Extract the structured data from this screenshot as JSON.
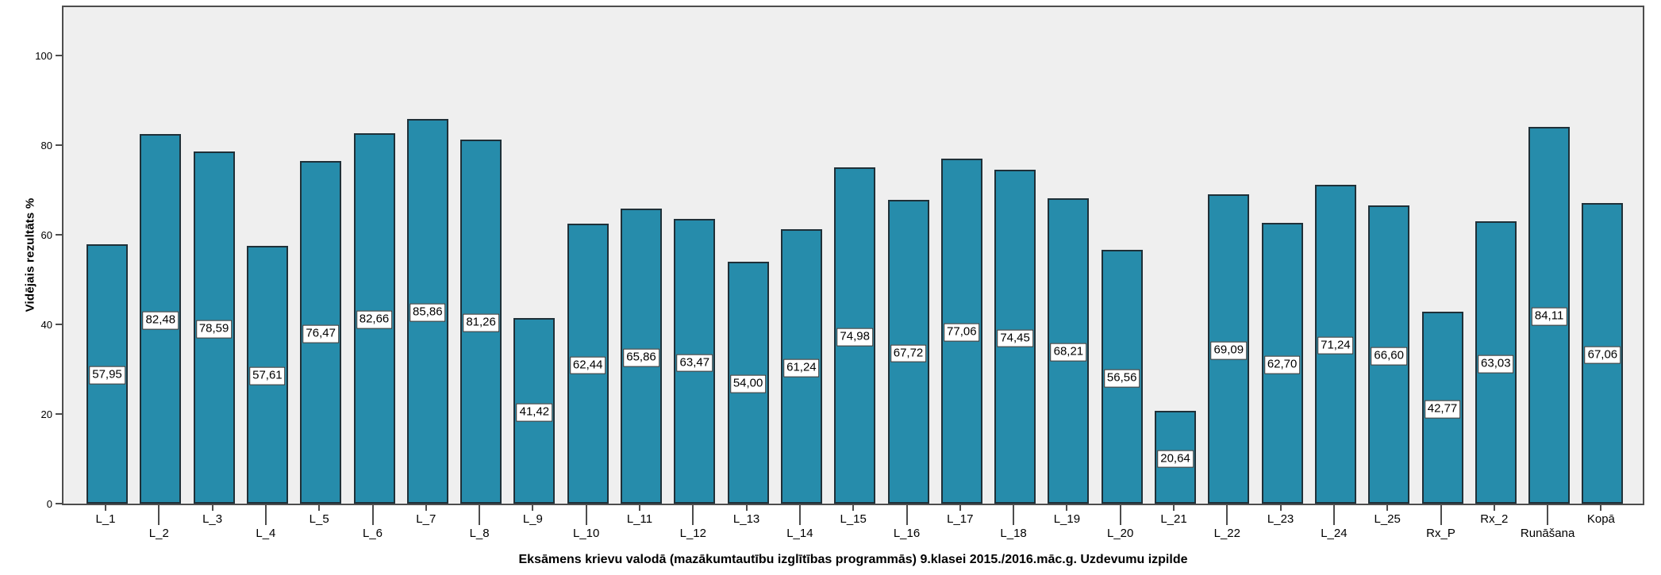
{
  "chart_data": {
    "type": "bar",
    "title": "Eksāmens krievu valodā (mazākumtautību izglītības programmās) 9.klasei 2015./2016.māc.g. Uzdevumu izpilde",
    "ylabel": "Vidējais rezultāts %",
    "xlabel": "",
    "categories": [
      "L_1",
      "L_2",
      "L_3",
      "L_4",
      "L_5",
      "L_6",
      "L_7",
      "L_8",
      "L_9",
      "L_10",
      "L_11",
      "L_12",
      "L_13",
      "L_14",
      "L_15",
      "L_16",
      "L_17",
      "L_18",
      "L_19",
      "L_20",
      "L_21",
      "L_22",
      "L_23",
      "L_24",
      "L_25",
      "Rx_P",
      "Rx_2",
      "Runāšana",
      "Kopā"
    ],
    "values": [
      57.95,
      82.48,
      78.59,
      57.61,
      76.47,
      82.66,
      85.86,
      81.26,
      41.42,
      62.44,
      65.86,
      63.47,
      54.0,
      61.24,
      74.98,
      67.72,
      77.06,
      74.45,
      68.21,
      56.56,
      20.64,
      69.09,
      62.7,
      71.24,
      66.6,
      42.77,
      63.03,
      84.11,
      67.06
    ],
    "value_labels": [
      "57,95",
      "82,48",
      "78,59",
      "57,61",
      "76,47",
      "82,66",
      "85,86",
      "81,26",
      "41,42",
      "62,44",
      "65,86",
      "63,47",
      "54,00",
      "61,24",
      "74,98",
      "67,72",
      "77,06",
      "74,45",
      "68,21",
      "56,56",
      "20,64",
      "69,09",
      "62,70",
      "71,24",
      "66,60",
      "42,77",
      "63,03",
      "84,11",
      "67,06"
    ],
    "yticks": [
      0,
      20,
      40,
      60,
      80,
      100
    ],
    "ylim": [
      0,
      111
    ],
    "grid": false,
    "legend": null,
    "bar_color": "#268cab",
    "bar_border_color": "#1f3038",
    "plot_bg_color": "#efefef",
    "frame_color": "#4d4d4d",
    "value_box_bg": "#ffffff",
    "value_box_border": "#2b2b2b"
  }
}
